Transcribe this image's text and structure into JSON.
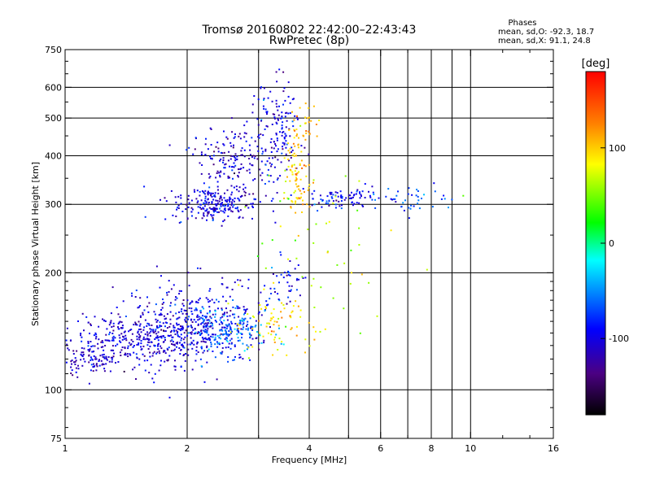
{
  "chart_data": {
    "type": "scatter",
    "title": "Tromsø 20160802 22:42:00–22:43:43",
    "subtitle": "RwPretec (8p)",
    "stats_header": "Phases",
    "stats_o": "mean, sd,O: -92.3, 18.7",
    "stats_x": "mean, sd,X:  91.1, 24.8",
    "xlabel": "Frequency [MHz]",
    "ylabel": "Stationary phase Virtual Height [km]",
    "x_scale": "log",
    "y_scale": "log",
    "xlim": [
      1,
      16
    ],
    "ylim": [
      75,
      750
    ],
    "x_ticks": [
      1,
      2,
      4,
      6,
      8,
      10,
      16
    ],
    "x_minor_ticks": [
      3,
      5,
      7,
      9,
      12,
      14
    ],
    "y_ticks": [
      75,
      100,
      200,
      300,
      400,
      500,
      600,
      750
    ],
    "y_minor_ticks": [
      80,
      90,
      110,
      120,
      130,
      140,
      150,
      160,
      170,
      180,
      190,
      250,
      350,
      450,
      550,
      650,
      700
    ],
    "x_grid": [
      2,
      3,
      4,
      5,
      6,
      7,
      8,
      9,
      10
    ],
    "y_grid": [
      100,
      200,
      300,
      400,
      500,
      600
    ],
    "grid": true,
    "colorbar": {
      "label": "[deg]",
      "ticks": [
        100,
        0,
        -100
      ],
      "range": [
        -180,
        180
      ],
      "colors": [
        "#ff0000",
        "#ff7f00",
        "#ffff00",
        "#00ff00",
        "#00ffff",
        "#0000ff",
        "#4b0082",
        "#000000"
      ]
    },
    "clusters": [
      {
        "name": "",
        "xc": 1.6,
        "yc": 135,
        "sx": 0.22,
        "sy": 0.09,
        "n": 420,
        "phase": -105
      },
      {
        "name": "",
        "xc": 1.15,
        "yc": 120,
        "sx": 0.08,
        "sy": 0.05,
        "n": 90,
        "phase": -110
      },
      {
        "name": "",
        "xc": 2.1,
        "yc": 150,
        "sx": 0.18,
        "sy": 0.12,
        "n": 300,
        "phase": -100
      },
      {
        "name": "",
        "xc": 2.5,
        "yc": 142,
        "sx": 0.12,
        "sy": 0.07,
        "n": 160,
        "phase": -60
      },
      {
        "name": "",
        "xc": 3.2,
        "yc": 148,
        "sx": 0.12,
        "sy": 0.08,
        "n": 70,
        "phase": 90
      },
      {
        "name": "",
        "xc": 2.35,
        "yc": 300,
        "sx": 0.12,
        "sy": 0.05,
        "n": 230,
        "phase": -100
      },
      {
        "name": "",
        "xc": 2.6,
        "yc": 390,
        "sx": 0.12,
        "sy": 0.1,
        "n": 170,
        "phase": -110
      },
      {
        "name": "",
        "xc": 3.3,
        "yc": 470,
        "sx": 0.07,
        "sy": 0.14,
        "n": 140,
        "phase": -100
      },
      {
        "name": "",
        "xc": 3.75,
        "yc": 360,
        "sx": 0.04,
        "sy": 0.12,
        "n": 90,
        "phase": 100
      },
      {
        "name": "",
        "xc": 3.9,
        "yc": 480,
        "sx": 0.05,
        "sy": 0.06,
        "n": 30,
        "phase": 110
      },
      {
        "name": "",
        "xc": 4.8,
        "yc": 310,
        "sx": 0.12,
        "sy": 0.03,
        "n": 90,
        "phase": -90
      },
      {
        "name": "",
        "xc": 7.0,
        "yc": 310,
        "sx": 0.12,
        "sy": 0.04,
        "n": 40,
        "phase": -70
      },
      {
        "name": "",
        "xc": 3.5,
        "yc": 190,
        "sx": 0.06,
        "sy": 0.1,
        "n": 45,
        "phase": -90
      },
      {
        "name": "",
        "xc": 4.2,
        "yc": 220,
        "sx": 0.25,
        "sy": 0.3,
        "n": 55,
        "phase": 60
      }
    ]
  }
}
